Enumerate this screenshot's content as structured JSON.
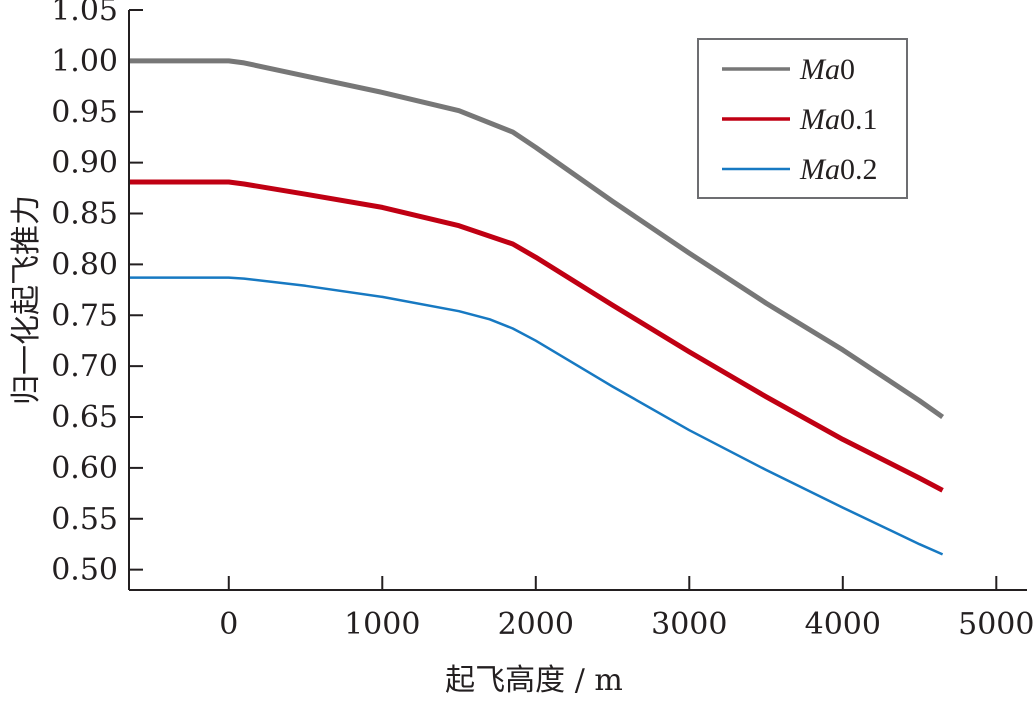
{
  "chart_data": {
    "type": "line",
    "title": "",
    "xlabel": "起飞高度 / m",
    "ylabel": "归一化起飞推力",
    "xlim": [
      -650,
      5200
    ],
    "ylim": [
      0.48,
      1.05
    ],
    "xticks": [
      0,
      1000,
      2000,
      3000,
      4000,
      5000
    ],
    "xtick_labels": [
      "0",
      "1000",
      "2000",
      "3000",
      "4000",
      "5000"
    ],
    "yticks": [
      0.5,
      0.55,
      0.6,
      0.65,
      0.7,
      0.75,
      0.8,
      0.85,
      0.9,
      0.95,
      1.0,
      1.05
    ],
    "ytick_labels": [
      "0.50",
      "0.55",
      "0.60",
      "0.65",
      "0.70",
      "0.75",
      "0.80",
      "0.85",
      "0.90",
      "0.95",
      "1.00",
      "1.05"
    ],
    "grid": false,
    "legend_position": "top-right",
    "series": [
      {
        "name": "Ma0",
        "legend_prefix": "Ma",
        "legend_suffix": "0",
        "color": "#777777",
        "stroke_width": 5,
        "x": [
          -650,
          0,
          100,
          500,
          1000,
          1500,
          1850,
          2000,
          2500,
          3000,
          3500,
          4000,
          4500,
          4650
        ],
        "y": [
          1.0,
          1.0,
          0.998,
          0.985,
          0.969,
          0.951,
          0.93,
          0.915,
          0.862,
          0.811,
          0.762,
          0.716,
          0.666,
          0.65
        ]
      },
      {
        "name": "Ma0.1",
        "legend_prefix": "Ma",
        "legend_suffix": "0.1",
        "color": "#c00013",
        "stroke_width": 5,
        "x": [
          -650,
          0,
          100,
          500,
          1000,
          1500,
          1850,
          2000,
          2500,
          3000,
          3500,
          4000,
          4500,
          4650
        ],
        "y": [
          0.881,
          0.881,
          0.879,
          0.869,
          0.856,
          0.838,
          0.82,
          0.807,
          0.76,
          0.714,
          0.67,
          0.628,
          0.59,
          0.578
        ]
      },
      {
        "name": "Ma0.2",
        "legend_prefix": "Ma",
        "legend_suffix": "0.2",
        "color": "#1779c2",
        "stroke_width": 2.5,
        "x": [
          -650,
          0,
          100,
          500,
          1000,
          1500,
          1700,
          1850,
          2000,
          2500,
          3000,
          3500,
          4000,
          4500,
          4650
        ],
        "y": [
          0.787,
          0.787,
          0.786,
          0.779,
          0.768,
          0.754,
          0.746,
          0.737,
          0.725,
          0.68,
          0.637,
          0.598,
          0.561,
          0.525,
          0.515
        ]
      }
    ]
  }
}
